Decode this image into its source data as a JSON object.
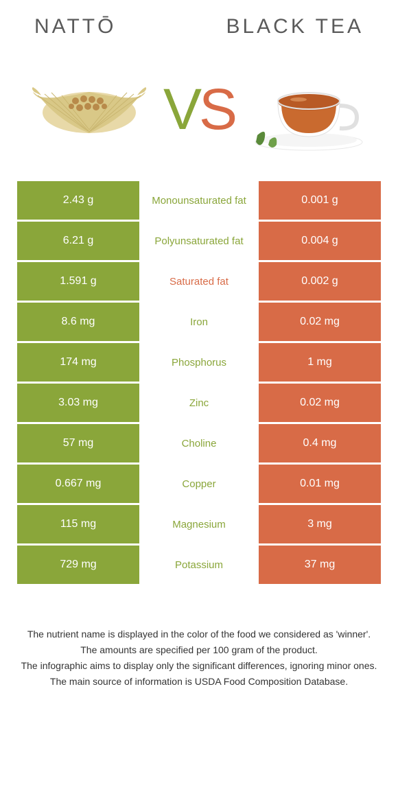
{
  "colors": {
    "green": "#8aa63a",
    "orange": "#d86b47",
    "text": "#333333",
    "titleText": "#5a5a5a"
  },
  "header": {
    "left": "nattō",
    "right": "black tea"
  },
  "vs": {
    "v": "V",
    "s": "S"
  },
  "rows": [
    {
      "left": "2.43 g",
      "mid": "Monounsaturated fat",
      "right": "0.001 g",
      "winner": "green"
    },
    {
      "left": "6.21 g",
      "mid": "Polyunsaturated fat",
      "right": "0.004 g",
      "winner": "green"
    },
    {
      "left": "1.591 g",
      "mid": "Saturated fat",
      "right": "0.002 g",
      "winner": "orange"
    },
    {
      "left": "8.6 mg",
      "mid": "Iron",
      "right": "0.02 mg",
      "winner": "green"
    },
    {
      "left": "174 mg",
      "mid": "Phosphorus",
      "right": "1 mg",
      "winner": "green"
    },
    {
      "left": "3.03 mg",
      "mid": "Zinc",
      "right": "0.02 mg",
      "winner": "green"
    },
    {
      "left": "57 mg",
      "mid": "Choline",
      "right": "0.4 mg",
      "winner": "green"
    },
    {
      "left": "0.667 mg",
      "mid": "Copper",
      "right": "0.01 mg",
      "winner": "green"
    },
    {
      "left": "115 mg",
      "mid": "Magnesium",
      "right": "3 mg",
      "winner": "green"
    },
    {
      "left": "729 mg",
      "mid": "Potassium",
      "right": "37 mg",
      "winner": "green"
    }
  ],
  "footer": {
    "line1": "The nutrient name is displayed in the color of the food we considered as 'winner'.",
    "line2": "The amounts are specified per 100 gram of the product.",
    "line3": "The infographic aims to display only the significant differences, ignoring minor ones.",
    "line4": "The main source of information is USDA Food Composition Database."
  }
}
